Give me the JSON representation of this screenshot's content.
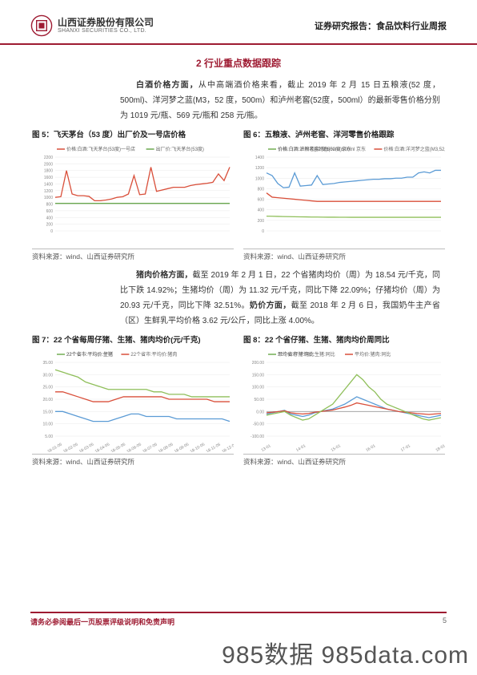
{
  "header": {
    "company_cn": "山西证券股份有限公司",
    "company_en": "SHANXI SECURITIES CO., LTD.",
    "report_type": "证券研究报告：食品饮料行业周报"
  },
  "section_title": "2 行业重点数据跟踪",
  "para1_lead": "白酒价格方面，",
  "para1_body": "从中高端酒价格来看，截止 2019 年 2 月 15 日五粮液(52 度，500ml)、洋河梦之蓝(M3，52 度，500m）和泸州老窖(52度，500ml）的最新零售价格分别为 1019 元/瓶、569 元/瓶和 258 元/瓶。",
  "fig5": {
    "title": "图 5：飞天茅台（53 度）出厂价及一号店价格",
    "source": "资料来源：wind、山西证券研究所",
    "type": "line",
    "legend": [
      "价格:白酒:飞天茅台(53度)一号店",
      "出厂价:飞天茅台(53度)"
    ],
    "colors": [
      "#d94f3a",
      "#6aa84f"
    ],
    "ylim": [
      0,
      2200
    ],
    "ytick_step": 200,
    "series1": [
      1000,
      1020,
      1800,
      1100,
      1050,
      1050,
      1030,
      900,
      900,
      920,
      950,
      1000,
      1020,
      1100,
      1650,
      1080,
      1100,
      1900,
      1180,
      1220,
      1260,
      1300,
      1300,
      1300,
      1350,
      1380,
      1400,
      1420,
      1450,
      1700,
      1500,
      1900
    ],
    "series2": [
      820,
      820,
      820,
      820,
      820,
      820,
      820,
      820,
      820,
      820,
      820,
      820,
      820,
      820,
      820,
      820,
      820,
      820,
      820,
      820,
      820,
      820,
      820,
      820,
      820,
      820,
      820,
      820,
      820,
      820,
      820,
      820
    ],
    "background_color": "#ffffff",
    "grid_color": "#e8e8e8"
  },
  "fig6": {
    "title": "图 6：五粮液、泸州老窖、洋河零售价格跟踪",
    "source": "资料来源：wind、山西证券研究所",
    "type": "line",
    "legend": [
      "价格:白酒:五粮液(52度)500ml 京东",
      "价格:白酒:洋河梦之蓝(M3,52度)500m 京东",
      "价格:白酒:泸州老窖特曲(52度)500ml 京东"
    ],
    "colors": [
      "#5b9bd5",
      "#d94f3a",
      "#8fbf5a"
    ],
    "ylim": [
      0,
      1400
    ],
    "ytick_step": 200,
    "series1": [
      1100,
      1050,
      900,
      820,
      830,
      1100,
      850,
      860,
      870,
      1050,
      880,
      890,
      900,
      920,
      930,
      940,
      950,
      960,
      970,
      980,
      980,
      990,
      990,
      1000,
      1000,
      1020,
      1020,
      1100,
      1120,
      1100,
      1150,
      1150
    ],
    "series2": [
      720,
      640,
      630,
      620,
      610,
      600,
      590,
      580,
      570,
      560,
      560,
      560,
      560,
      560,
      560,
      560,
      560,
      560,
      560,
      560,
      560,
      560,
      560,
      560,
      560,
      560,
      560,
      560,
      560,
      560,
      560,
      560
    ],
    "series3": [
      280,
      278,
      275,
      272,
      270,
      268,
      266,
      265,
      263,
      262,
      261,
      260,
      260,
      259,
      259,
      258,
      258,
      258,
      258,
      258,
      258,
      258,
      258,
      258,
      258,
      258,
      258,
      258,
      258,
      258,
      258,
      258
    ],
    "background_color": "#ffffff",
    "grid_color": "#e8e8e8"
  },
  "para2_lead": "猪肉价格方面，",
  "para2_body": "截至 2019 年 2 月 1 日，22 个省猪肉均价（周）为 18.54 元/千克，同比下跌 14.92%；生猪均价（周）为 11.32 元/千克，同比下降 22.09%；仔猪均价（周）为 20.93 元/千克，同比下降 32.51%。",
  "para2_lead2": "奶价方面，",
  "para2_body2": "截至 2018 年 2 月 6 日，我国奶牛主产省（区）生鲜乳平均价格 3.62 元/公斤，同比上涨 4.00%。",
  "fig7": {
    "title": "图 7：22 个省每周仔猪、生猪、猪肉均价(元/千克)",
    "source": "资料来源：wind、山西证券研究所",
    "type": "line",
    "legend": [
      "22个省市:平均价:生猪",
      "22个省市:平均价:猪肉",
      "22个省市:平均价:仔猪"
    ],
    "colors": [
      "#5b9bd5",
      "#d94f3a",
      "#8fbf5a"
    ],
    "ylim": [
      5,
      35
    ],
    "ytick_step": 5,
    "xlabels": [
      "18-01-05",
      "18-02-05",
      "18-03-05",
      "18-04-05",
      "18-05-05",
      "18-06-05",
      "18-07-05",
      "18-08-05",
      "18-09-05",
      "18-10-05",
      "18-11-05",
      "18-12-05"
    ],
    "series_blue": [
      15,
      15,
      14,
      13,
      12,
      11,
      11,
      11,
      12,
      13,
      14,
      14,
      13,
      13,
      13,
      13,
      12,
      12,
      12,
      12,
      12,
      12,
      12,
      11
    ],
    "series_red": [
      23,
      23,
      22,
      21,
      20,
      19,
      19,
      19,
      20,
      21,
      21,
      21,
      21,
      21,
      21,
      20,
      20,
      20,
      20,
      20,
      20,
      19,
      19,
      19
    ],
    "series_green": [
      32,
      31,
      30,
      29,
      27,
      26,
      25,
      24,
      24,
      24,
      24,
      24,
      24,
      23,
      23,
      22,
      22,
      22,
      21,
      21,
      21,
      21,
      21,
      21
    ],
    "background_color": "#ffffff",
    "grid_color": "#e8e8e8"
  },
  "fig8": {
    "title": "图 8：22 个省仔猪、生猪、猪肉均价周同比",
    "source": "资料来源：wind、山西证券研究所",
    "type": "line",
    "legend": [
      "22个省市:平均价:生猪:同比",
      "平均价:猪肉:同比",
      "平均价:仔猪:同比"
    ],
    "colors": [
      "#5b9bd5",
      "#d94f3a",
      "#8fbf5a"
    ],
    "ylim": [
      -100,
      200
    ],
    "ytick_step": 50,
    "xlabels": [
      "13-01",
      "14-01",
      "15-01",
      "16-01",
      "17-01",
      "18-01"
    ],
    "series_blue": [
      -10,
      -5,
      0,
      5,
      -10,
      -15,
      -20,
      -15,
      -5,
      0,
      5,
      10,
      20,
      30,
      45,
      60,
      50,
      40,
      30,
      20,
      10,
      5,
      0,
      -5,
      -10,
      -15,
      -20,
      -25,
      -20,
      -15
    ],
    "series_red": [
      -5,
      -3,
      0,
      3,
      -5,
      -8,
      -10,
      -8,
      -3,
      0,
      3,
      6,
      12,
      18,
      25,
      35,
      30,
      25,
      20,
      15,
      10,
      5,
      0,
      -3,
      -5,
      -8,
      -10,
      -12,
      -10,
      -8
    ],
    "series_green": [
      -15,
      -10,
      -5,
      0,
      -15,
      -25,
      -35,
      -30,
      -15,
      0,
      15,
      30,
      60,
      90,
      120,
      150,
      130,
      100,
      80,
      50,
      30,
      20,
      10,
      0,
      -10,
      -20,
      -30,
      -35,
      -30,
      -25
    ],
    "background_color": "#ffffff",
    "grid_color": "#e8e8e8"
  },
  "footer": {
    "disclaimer": "请务必参阅最后一页股票评级说明和免责声明",
    "page": "5"
  },
  "watermark": "985数据 985data.com"
}
